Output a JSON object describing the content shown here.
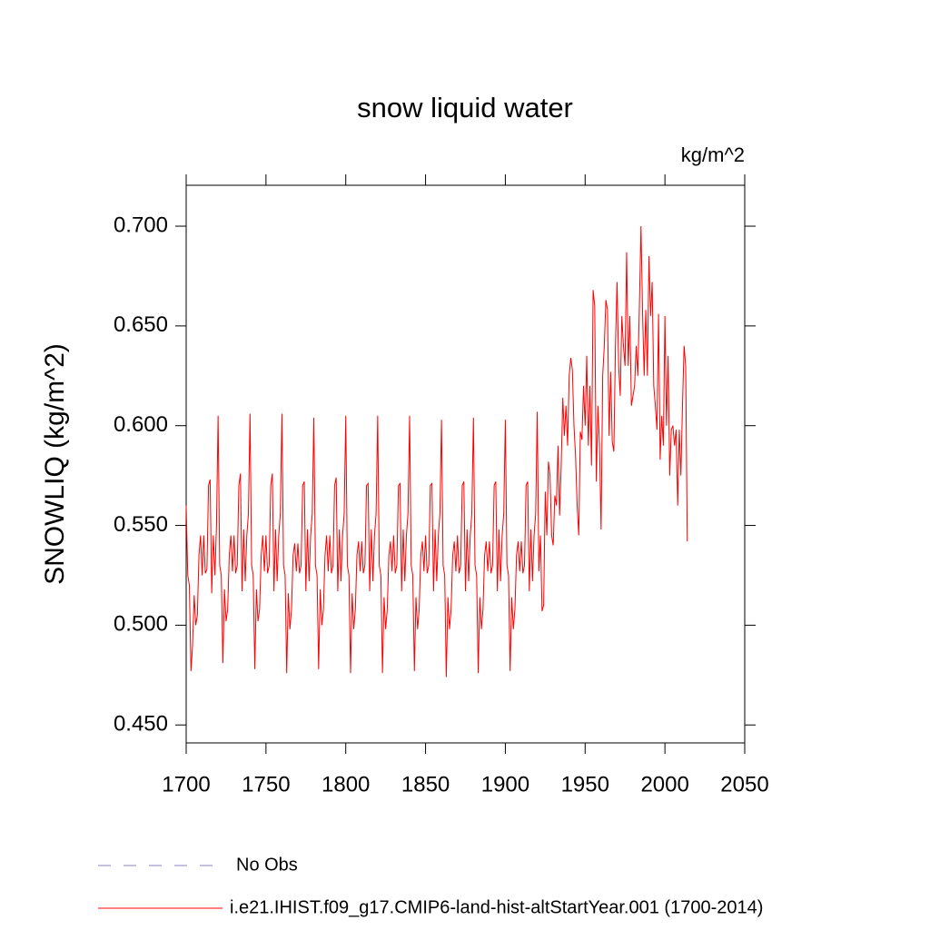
{
  "chart_data": {
    "type": "line",
    "title": "snow liquid water",
    "units": "kg/m^2",
    "y_label": "SNOWLIQ  (kg/m^2)",
    "xlim": [
      1700,
      2050
    ],
    "xticks": [
      1700,
      1750,
      1800,
      1850,
      1900,
      1950,
      2000,
      2050
    ],
    "ylim": [
      0.441,
      0.7205
    ],
    "yticks": [
      {
        "value": 0.45,
        "label": "0.450"
      },
      {
        "value": 0.5,
        "label": "0.500"
      },
      {
        "value": 0.55,
        "label": "0.550"
      },
      {
        "value": 0.6,
        "label": "0.600"
      },
      {
        "value": 0.65,
        "label": "0.650"
      },
      {
        "value": 0.7,
        "label": "0.700"
      }
    ],
    "reference": {
      "name": "No Obs",
      "color": "#8a80c0",
      "dashed": true
    },
    "x": [
      1700,
      1701,
      1702,
      1703,
      1704,
      1705,
      1706,
      1707,
      1708,
      1709,
      1710,
      1711,
      1712,
      1713,
      1714,
      1715,
      1716,
      1717,
      1718,
      1719,
      1720,
      1721,
      1722,
      1723,
      1724,
      1725,
      1726,
      1727,
      1728,
      1729,
      1730,
      1731,
      1732,
      1733,
      1734,
      1735,
      1736,
      1737,
      1738,
      1739,
      1740,
      1741,
      1742,
      1743,
      1744,
      1745,
      1746,
      1747,
      1748,
      1749,
      1750,
      1751,
      1752,
      1753,
      1754,
      1755,
      1756,
      1757,
      1758,
      1759,
      1760,
      1761,
      1762,
      1763,
      1764,
      1765,
      1766,
      1767,
      1768,
      1769,
      1770,
      1771,
      1772,
      1773,
      1774,
      1775,
      1776,
      1777,
      1778,
      1779,
      1780,
      1781,
      1782,
      1783,
      1784,
      1785,
      1786,
      1787,
      1788,
      1789,
      1790,
      1791,
      1792,
      1793,
      1794,
      1795,
      1796,
      1797,
      1798,
      1799,
      1800,
      1801,
      1802,
      1803,
      1804,
      1805,
      1806,
      1807,
      1808,
      1809,
      1810,
      1811,
      1812,
      1813,
      1814,
      1815,
      1816,
      1817,
      1818,
      1819,
      1820,
      1821,
      1822,
      1823,
      1824,
      1825,
      1826,
      1827,
      1828,
      1829,
      1830,
      1831,
      1832,
      1833,
      1834,
      1835,
      1836,
      1837,
      1838,
      1839,
      1840,
      1841,
      1842,
      1843,
      1844,
      1845,
      1846,
      1847,
      1848,
      1849,
      1850,
      1851,
      1852,
      1853,
      1854,
      1855,
      1856,
      1857,
      1858,
      1859,
      1860,
      1861,
      1862,
      1863,
      1864,
      1865,
      1866,
      1867,
      1868,
      1869,
      1870,
      1871,
      1872,
      1873,
      1874,
      1875,
      1876,
      1877,
      1878,
      1879,
      1880,
      1881,
      1882,
      1883,
      1884,
      1885,
      1886,
      1887,
      1888,
      1889,
      1890,
      1891,
      1892,
      1893,
      1894,
      1895,
      1896,
      1897,
      1898,
      1899,
      1900,
      1901,
      1902,
      1903,
      1904,
      1905,
      1906,
      1907,
      1908,
      1909,
      1910,
      1911,
      1912,
      1913,
      1914,
      1915,
      1916,
      1917,
      1918,
      1919,
      1920,
      1921,
      1922,
      1923,
      1924,
      1925,
      1926,
      1927,
      1928,
      1929,
      1930,
      1931,
      1932,
      1933,
      1934,
      1935,
      1936,
      1937,
      1938,
      1939,
      1940,
      1941,
      1942,
      1943,
      1944,
      1945,
      1946,
      1947,
      1948,
      1949,
      1950,
      1951,
      1952,
      1953,
      1954,
      1955,
      1956,
      1957,
      1958,
      1959,
      1960,
      1961,
      1962,
      1963,
      1964,
      1965,
      1966,
      1967,
      1968,
      1969,
      1970,
      1971,
      1972,
      1973,
      1974,
      1975,
      1976,
      1977,
      1978,
      1979,
      1980,
      1981,
      1982,
      1983,
      1984,
      1985,
      1986,
      1987,
      1988,
      1989,
      1990,
      1991,
      1992,
      1993,
      1994,
      1995,
      1996,
      1997,
      1998,
      1999,
      2000,
      2001,
      2002,
      2003,
      2004,
      2005,
      2006,
      2007,
      2008,
      2009,
      2010,
      2011,
      2012,
      2013,
      2014
    ],
    "series": [
      {
        "name": "i.e21.IHIST.f09_g17.CMIP6-land-hist-altStartYear.001 (1700-2014)",
        "color": "#ff0000",
        "values": [
          0.56,
          0.525,
          0.52,
          0.477,
          0.49,
          0.515,
          0.5,
          0.505,
          0.535,
          0.545,
          0.525,
          0.545,
          0.526,
          0.528,
          0.57,
          0.573,
          0.516,
          0.545,
          0.525,
          0.55,
          0.605,
          0.53,
          0.525,
          0.481,
          0.518,
          0.502,
          0.508,
          0.535,
          0.545,
          0.527,
          0.545,
          0.526,
          0.53,
          0.57,
          0.576,
          0.517,
          0.548,
          0.522,
          0.545,
          0.556,
          0.606,
          0.53,
          0.525,
          0.478,
          0.518,
          0.502,
          0.508,
          0.535,
          0.545,
          0.527,
          0.545,
          0.526,
          0.53,
          0.57,
          0.576,
          0.517,
          0.548,
          0.522,
          0.545,
          0.556,
          0.606,
          0.53,
          0.525,
          0.476,
          0.516,
          0.498,
          0.508,
          0.535,
          0.541,
          0.527,
          0.541,
          0.526,
          0.53,
          0.57,
          0.572,
          0.517,
          0.548,
          0.522,
          0.545,
          0.556,
          0.604,
          0.53,
          0.525,
          0.478,
          0.518,
          0.5,
          0.508,
          0.535,
          0.545,
          0.527,
          0.545,
          0.526,
          0.53,
          0.57,
          0.574,
          0.517,
          0.548,
          0.522,
          0.545,
          0.556,
          0.605,
          0.53,
          0.525,
          0.476,
          0.516,
          0.498,
          0.508,
          0.535,
          0.542,
          0.527,
          0.542,
          0.526,
          0.53,
          0.57,
          0.571,
          0.517,
          0.548,
          0.522,
          0.545,
          0.556,
          0.605,
          0.53,
          0.525,
          0.476,
          0.514,
          0.498,
          0.508,
          0.535,
          0.542,
          0.527,
          0.545,
          0.526,
          0.53,
          0.57,
          0.571,
          0.517,
          0.548,
          0.522,
          0.545,
          0.556,
          0.605,
          0.53,
          0.525,
          0.477,
          0.514,
          0.498,
          0.508,
          0.535,
          0.542,
          0.527,
          0.545,
          0.526,
          0.53,
          0.57,
          0.571,
          0.517,
          0.548,
          0.522,
          0.545,
          0.556,
          0.603,
          0.53,
          0.525,
          0.474,
          0.514,
          0.498,
          0.508,
          0.535,
          0.542,
          0.527,
          0.545,
          0.526,
          0.53,
          0.57,
          0.572,
          0.517,
          0.548,
          0.522,
          0.545,
          0.556,
          0.604,
          0.53,
          0.525,
          0.476,
          0.514,
          0.498,
          0.508,
          0.535,
          0.542,
          0.527,
          0.542,
          0.526,
          0.53,
          0.57,
          0.572,
          0.517,
          0.548,
          0.522,
          0.545,
          0.556,
          0.603,
          0.53,
          0.525,
          0.477,
          0.514,
          0.498,
          0.508,
          0.535,
          0.542,
          0.527,
          0.542,
          0.526,
          0.53,
          0.57,
          0.572,
          0.517,
          0.548,
          0.522,
          0.545,
          0.556,
          0.607,
          0.527,
          0.545,
          0.507,
          0.51,
          0.567,
          0.545,
          0.582,
          0.575,
          0.545,
          0.54,
          0.565,
          0.56,
          0.59,
          0.555,
          0.58,
          0.614,
          0.595,
          0.61,
          0.59,
          0.625,
          0.634,
          0.628,
          0.6,
          0.585,
          0.56,
          0.545,
          0.597,
          0.593,
          0.62,
          0.6,
          0.635,
          0.59,
          0.62,
          0.58,
          0.668,
          0.66,
          0.572,
          0.61,
          0.59,
          0.548,
          0.625,
          0.64,
          0.663,
          0.658,
          0.595,
          0.627,
          0.592,
          0.587,
          0.64,
          0.672,
          0.63,
          0.615,
          0.655,
          0.64,
          0.63,
          0.687,
          0.63,
          0.655,
          0.61,
          0.615,
          0.62,
          0.64,
          0.625,
          0.66,
          0.7,
          0.656,
          0.625,
          0.658,
          0.625,
          0.685,
          0.655,
          0.672,
          0.62,
          0.61,
          0.598,
          0.656,
          0.583,
          0.605,
          0.59,
          0.655,
          0.6,
          0.635,
          0.575,
          0.598,
          0.6,
          0.59,
          0.598,
          0.56,
          0.598,
          0.575,
          0.61,
          0.64,
          0.63,
          0.542
        ]
      }
    ]
  }
}
